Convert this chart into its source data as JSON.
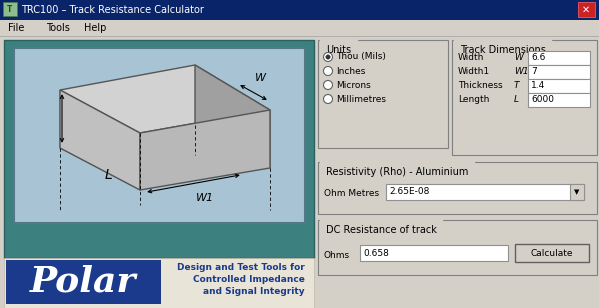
{
  "title_bar_text": "TRC100 – Track Resistance Calculator",
  "title_bar_bg": "#0A246A",
  "menu_items": [
    "File",
    "Tools",
    "Help"
  ],
  "bg_color": "#D4D0C8",
  "body_bg": "#D4D0C8",
  "teal_bg": "#3D8080",
  "pcb_bg": "#A8C4D4",
  "units_label": "Units",
  "radio_options": [
    "Thou (Mils)",
    "Inches",
    "Microns",
    "Millimetres"
  ],
  "radio_selected": 0,
  "track_dims_label": "Track Dimensions",
  "dim_labels": [
    "Width",
    "Width1",
    "Thickness",
    "Length"
  ],
  "dim_vars": [
    "W",
    "W1",
    "T",
    "L"
  ],
  "dim_values": [
    "6.6",
    "7",
    "1.4",
    "6000"
  ],
  "resistivity_label": "Resistivity (Rho) - Aluminium",
  "ohm_metres_label": "Ohm Metres",
  "ohm_metres_value": "2.65E-08",
  "dc_resistance_label": "DC Resistance of track",
  "ohms_label": "Ohms",
  "result_value": "0.658",
  "calc_button": "Calculate",
  "polar_text1": "Design and Test Tools for",
  "polar_text2": "Controlled Impedance",
  "polar_text3": "and Signal Integrity",
  "polar_logo_bg": "#1B3A8C",
  "polar_body_bg": "#E8E4D8",
  "groupbox_bg": "#D4D0C8",
  "groupbox_ec": "#808080",
  "pcb_top": "#C8C8C8",
  "pcb_right": "#989898",
  "pcb_front": "#B0B0B0",
  "pcb_bottom": "#AAAAAA"
}
